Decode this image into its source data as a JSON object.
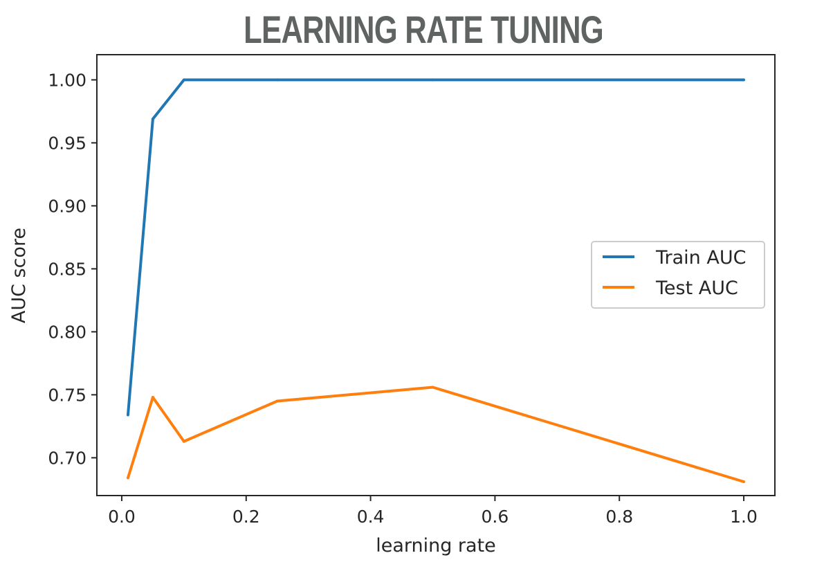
{
  "page": {
    "title": "LEARNING RATE TUNING"
  },
  "chart_data": {
    "type": "line",
    "xlabel": "learning rate",
    "ylabel": "AUC score",
    "xlim": [
      -0.04,
      1.05
    ],
    "ylim": [
      0.67,
      1.02
    ],
    "xticks": [
      0.0,
      0.2,
      0.4,
      0.6,
      0.8,
      1.0
    ],
    "xtick_labels": [
      "0.0",
      "0.2",
      "0.4",
      "0.6",
      "0.8",
      "1.0"
    ],
    "yticks": [
      0.7,
      0.75,
      0.8,
      0.85,
      0.9,
      0.95,
      1.0
    ],
    "ytick_labels": [
      "0.70",
      "0.75",
      "0.80",
      "0.85",
      "0.90",
      "0.95",
      "1.00"
    ],
    "grid": false,
    "legend_position": "center-right",
    "x": [
      0.01,
      0.05,
      0.1,
      0.25,
      0.5,
      1.0
    ],
    "series": [
      {
        "name": "Train AUC",
        "color": "#1f77b4",
        "values": [
          0.734,
          0.969,
          1.0,
          1.0,
          1.0,
          1.0
        ]
      },
      {
        "name": "Test AUC",
        "color": "#ff7f0e",
        "values": [
          0.684,
          0.748,
          0.713,
          0.745,
          0.756,
          0.681
        ]
      }
    ]
  }
}
